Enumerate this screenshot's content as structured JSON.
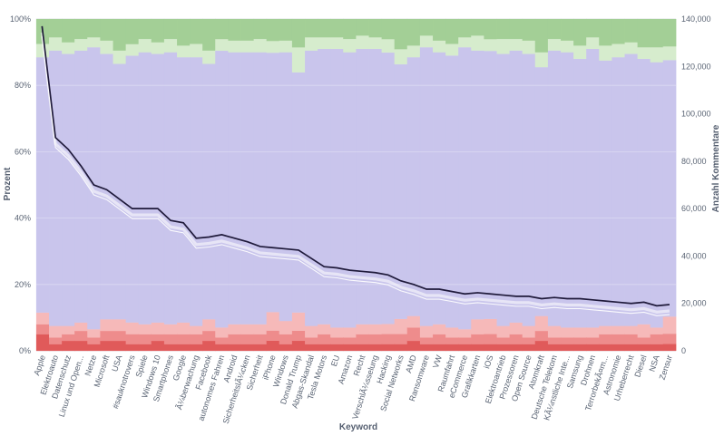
{
  "chart_data": {
    "type": "bar",
    "stacked": true,
    "normalized_percent": true,
    "xlabel": "Keyword",
    "ylabel": "Prozent",
    "y2label": "Anzahl Kommentare",
    "ylim": [
      0,
      100
    ],
    "y2lim": [
      0,
      140000
    ],
    "y_ticks": [
      "0%",
      "20%",
      "40%",
      "60%",
      "80%",
      "100%"
    ],
    "y2_ticks": [
      "0",
      "20,000",
      "40,000",
      "60,000",
      "80,000",
      "100,000",
      "120,000",
      "140,000"
    ],
    "grid": true,
    "categories": [
      "Apple",
      "Elektroauto",
      "Datenschutz",
      "Linux und Open...",
      "Netze",
      "Microsoft",
      "USA",
      "#sauknotrovers",
      "Spiele",
      "Windows 10",
      "Smartphones",
      "Google",
      "Ã¼berwachung",
      "Facebook",
      "autonomes Fahren",
      "Android",
      "SicherheitslÃ¼cken",
      "Sicherheit",
      "iPhone",
      "Windows",
      "Donald Trump",
      "Abgas-Skandal",
      "Tesla Motors",
      "EU",
      "Amazon",
      "Recht",
      "VerschlÃ¼sselung",
      "Hacking",
      "Social Networks",
      "AMD",
      "Ransomware",
      "VW",
      "Raumfahrt",
      "eCommerce",
      "Grafikkarten",
      "iOS",
      "Elektroantrieb",
      "Prozessoren",
      "Open Source",
      "Atomkraft",
      "Deutsche Telekom",
      "KÃ¼nstliche Inte...",
      "Samsung",
      "Drohnen",
      "TerrorbekÃ¤m...",
      "Astronomie",
      "Urheberrecht",
      "Diesel",
      "NSA",
      "Zensur"
    ],
    "series": [
      {
        "color": "#e05a5a",
        "values": [
          5,
          2,
          3,
          3,
          2,
          3,
          3,
          2,
          2,
          3,
          2,
          2,
          2,
          3,
          2,
          2,
          2,
          2,
          3,
          2,
          3,
          2,
          2,
          2,
          2,
          2,
          2,
          2,
          2,
          3,
          2,
          2,
          2,
          2,
          2,
          2,
          2,
          2,
          2,
          3,
          2,
          2,
          2,
          2,
          2,
          2,
          2,
          2,
          2,
          2
        ]
      },
      {
        "color": "#ee8c8c",
        "values": [
          3,
          2,
          2,
          3,
          2,
          3,
          3,
          3,
          3,
          2,
          3,
          3,
          3,
          3,
          2,
          3,
          3,
          3,
          3,
          3,
          3,
          2,
          3,
          2,
          2,
          3,
          3,
          3,
          3,
          4,
          2,
          3,
          2,
          2,
          3,
          3,
          2,
          3,
          2,
          3,
          2,
          2,
          2,
          2,
          3,
          3,
          3,
          2,
          3,
          3
        ]
      },
      {
        "color": "#f6b9b9",
        "values": [
          3.5,
          3.5,
          2.5,
          2.5,
          2.5,
          3.5,
          3.5,
          3.5,
          3,
          3.5,
          3,
          3.5,
          2.5,
          3.5,
          3,
          3,
          3,
          3,
          5.5,
          4,
          5.5,
          3.5,
          3,
          3,
          3,
          3,
          3,
          3,
          4.5,
          3.5,
          3.5,
          3,
          3,
          2.5,
          4.5,
          4.5,
          3.5,
          3.5,
          3.5,
          4.5,
          3.5,
          3,
          3,
          3,
          2.5,
          2.5,
          2.5,
          4,
          2,
          5
        ]
      },
      {
        "color": "#c9c5ec",
        "values": [
          77,
          83,
          82,
          82,
          85,
          80,
          77,
          80,
          82,
          81,
          82,
          80,
          81,
          77,
          83,
          82,
          82,
          82,
          77,
          81,
          72,
          83,
          83,
          84,
          83,
          83,
          83,
          81,
          76,
          78,
          84,
          82,
          82,
          85,
          81,
          80,
          82,
          82,
          82,
          75,
          83,
          83,
          81,
          84,
          80,
          81,
          82,
          80,
          80,
          75
        ]
      },
      {
        "color": "#d6eccd",
        "values": [
          4,
          4,
          3.5,
          3.5,
          3,
          4,
          4,
          3.5,
          4,
          3.5,
          4,
          3.5,
          4,
          4,
          3.5,
          3.5,
          3.5,
          4,
          3.5,
          3.5,
          7.5,
          4,
          3.5,
          3.5,
          4,
          4,
          3.5,
          4,
          4.5,
          3.5,
          3.5,
          3.5,
          3.5,
          3,
          4.5,
          3.5,
          4.5,
          3.5,
          4,
          4.5,
          3.5,
          3.5,
          4,
          3.5,
          4.5,
          4,
          3.5,
          3.5,
          4.5,
          4
        ]
      },
      {
        "color": "#a3cf96",
        "values": [
          7.5,
          5.5,
          7,
          6,
          5.5,
          6.5,
          9.5,
          7.5,
          6,
          7,
          6,
          8,
          7.5,
          9.5,
          6,
          6.5,
          6.5,
          6,
          6.5,
          6.5,
          8.5,
          5.5,
          5.5,
          5.5,
          6,
          5,
          5.5,
          6,
          9,
          8,
          5,
          6.5,
          7.5,
          5.5,
          5,
          6,
          6,
          6,
          6.5,
          10,
          6,
          6.5,
          8,
          5.5,
          8,
          7.5,
          7,
          8.5,
          8.5,
          8
        ]
      }
    ],
    "line_series": {
      "axis": "y2",
      "values": [
        137000,
        90000,
        85000,
        78000,
        70000,
        68000,
        64000,
        60000,
        60000,
        60000,
        55000,
        54000,
        47500,
        48000,
        49000,
        47500,
        46000,
        44000,
        43500,
        43000,
        42500,
        39000,
        35500,
        35000,
        34000,
        33500,
        33000,
        32000,
        29500,
        28000,
        26000,
        26000,
        25000,
        24000,
        24500,
        24000,
        23500,
        23000,
        23000,
        22000,
        22500,
        22000,
        22000,
        21500,
        21000,
        20500,
        20000,
        20500,
        19000,
        19500
      ]
    }
  }
}
